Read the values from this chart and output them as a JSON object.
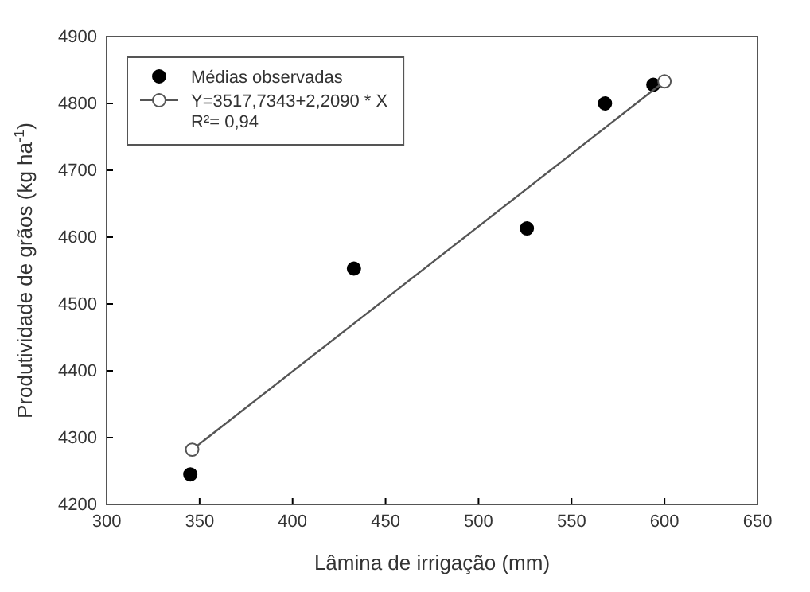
{
  "chart_data": {
    "type": "scatter",
    "xlabel": "Lâmina de irrigação (mm)",
    "ylabel": "Produtividade de grãos (kg ha$^{-1}$)",
    "xlim": [
      300,
      650
    ],
    "xticks": [
      300,
      350,
      400,
      450,
      500,
      550,
      600,
      650
    ],
    "ylim": [
      4200,
      4900
    ],
    "yticks": [
      4200,
      4300,
      4400,
      4500,
      4600,
      4700,
      4800,
      4900
    ],
    "series": [
      {
        "name": "Médias observadas",
        "color": "#000000",
        "marker": "circle",
        "x": [
          345,
          433,
          526,
          568,
          594
        ],
        "values": [
          4245,
          4553,
          4613,
          4800,
          4828
        ]
      },
      {
        "name": "Y=3517,7343+2,2090 * X",
        "type": "line",
        "color": "#555555",
        "marker": "circle",
        "x": [
          346,
          600
        ],
        "values": [
          4282,
          4833
        ]
      }
    ],
    "annotations": [
      "R²= 0,94"
    ],
    "legend": "top left",
    "grid": false
  }
}
